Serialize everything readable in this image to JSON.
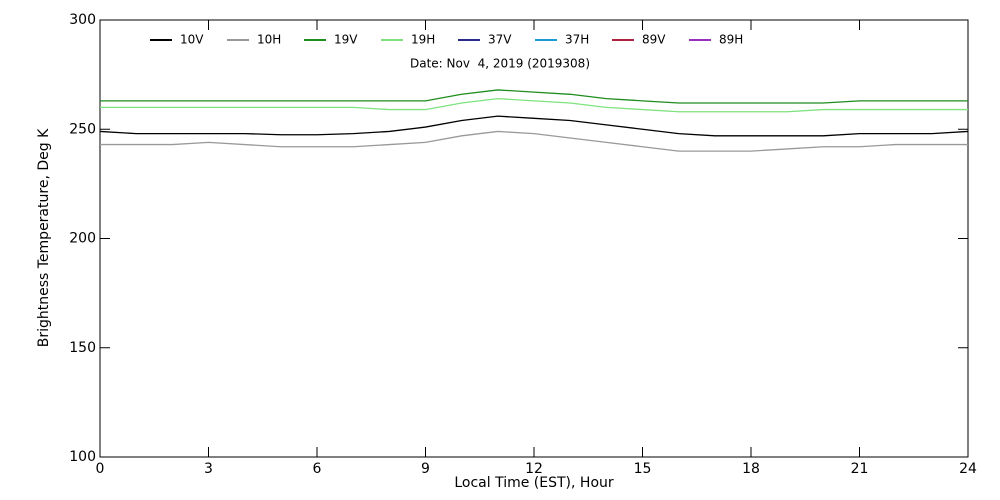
{
  "chart_data": {
    "type": "line",
    "annotation": "Date: Nov  4, 2019 (2019308)",
    "x_label": "Local Time (EST), Hour",
    "y_label": "Brightness Temperature, Deg K",
    "x": [
      0,
      1,
      2,
      3,
      4,
      5,
      6,
      7,
      8,
      9,
      10,
      11,
      12,
      13,
      14,
      15,
      16,
      17,
      18,
      19,
      20,
      21,
      22,
      23,
      24
    ],
    "series": [
      {
        "name": "10V",
        "color": "#000000",
        "values": [
          249,
          248,
          248,
          248,
          248,
          247.5,
          247.5,
          248,
          249,
          251,
          254,
          256,
          255,
          254,
          252,
          250,
          248,
          247,
          247,
          247,
          247,
          248,
          248,
          248,
          249
        ]
      },
      {
        "name": "10H",
        "color": "#999999",
        "values": [
          243,
          243,
          243,
          244,
          243,
          242,
          242,
          242,
          243,
          244,
          247,
          249,
          248,
          246,
          244,
          242,
          240,
          240,
          240,
          241,
          242,
          242,
          243,
          243,
          243
        ]
      },
      {
        "name": "19V",
        "color": "#1e8c1e",
        "values": [
          263,
          263,
          263,
          263,
          263,
          263,
          263,
          263,
          263,
          263,
          266,
          268,
          267,
          266,
          264,
          263,
          262,
          262,
          262,
          262,
          262,
          263,
          263,
          263,
          263
        ]
      },
      {
        "name": "19H",
        "color": "#7ee27e",
        "values": [
          260,
          260,
          260,
          260,
          260,
          260,
          260,
          260,
          259,
          259,
          262,
          264,
          263,
          262,
          260,
          259,
          258,
          258,
          258,
          258,
          259,
          259,
          259,
          259,
          259
        ]
      },
      {
        "name": "37V",
        "color": "#2b2b8c",
        "values": [
          null,
          null,
          null,
          null,
          null,
          null,
          null,
          null,
          null,
          null,
          null,
          null,
          null,
          null,
          null,
          null,
          null,
          null,
          null,
          null,
          null,
          null,
          null,
          null,
          null
        ]
      },
      {
        "name": "37H",
        "color": "#1a9ad0",
        "values": [
          null,
          null,
          null,
          null,
          null,
          null,
          null,
          null,
          null,
          null,
          null,
          null,
          null,
          null,
          null,
          null,
          null,
          null,
          null,
          null,
          null,
          null,
          null,
          null,
          null
        ]
      },
      {
        "name": "89V",
        "color": "#b02040",
        "values": [
          null,
          null,
          null,
          null,
          null,
          null,
          null,
          null,
          null,
          null,
          null,
          null,
          null,
          null,
          null,
          null,
          null,
          null,
          null,
          null,
          null,
          null,
          null,
          null,
          null
        ]
      },
      {
        "name": "89H",
        "color": "#9b30c0",
        "values": [
          null,
          null,
          null,
          null,
          null,
          null,
          null,
          null,
          null,
          null,
          null,
          null,
          null,
          null,
          null,
          null,
          null,
          null,
          null,
          null,
          null,
          null,
          null,
          null,
          null
        ]
      }
    ],
    "xlim": [
      0,
      24
    ],
    "xticks": [
      0,
      3,
      6,
      9,
      12,
      15,
      18,
      21,
      24
    ],
    "ylim": [
      100,
      300
    ],
    "yticks": [
      100,
      150,
      200,
      250,
      300
    ]
  }
}
